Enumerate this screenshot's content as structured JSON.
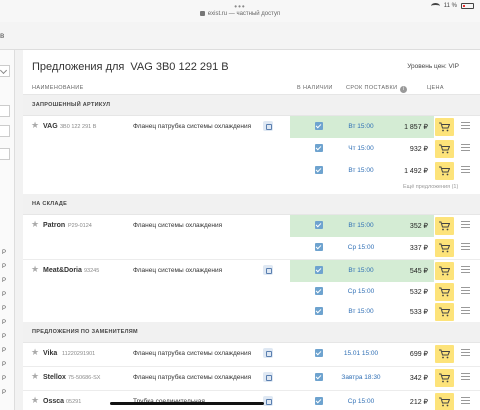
{
  "statusbar": {
    "dots": "•••",
    "url": "exist.ru — частный доступ",
    "battery": "11 %"
  },
  "navbar": {
    "letter": "в"
  },
  "leftpanel": {
    "r_labels": [
      "Р",
      "Р",
      "Р",
      "Р",
      "Р",
      "Р",
      "Р",
      "Р",
      "Р",
      "Р",
      "Р",
      "Р"
    ]
  },
  "header": {
    "title": "Предложения для",
    "code": "VAG 3B0 122 291 B",
    "price_level": "Уровень цен: VIP"
  },
  "columns": {
    "name": "НАИМЕНОВАНИЕ",
    "in_stock": "В НАЛИЧИИ",
    "delivery": "СРОК ПОСТАВКИ",
    "price": "ЦЕНА"
  },
  "sections": {
    "requested": "ЗАПРОШЕННЫЙ АРТИКУЛ",
    "warehouse": "НА СКЛАДЕ",
    "substitutes": "ПРЕДЛОЖЕНИЯ ПО ЗАМЕНИТЕЛЯМ"
  },
  "more_offers": "Ещё предложения (1)",
  "rows": {
    "r1": {
      "brand": "VAG",
      "article": "3B0 122 291 B",
      "desc": "Фланец патрубка системы охлаждения",
      "term": "Вт 15:00",
      "price": "1 857 ₽"
    },
    "r2": {
      "term": "Чт 15:00",
      "price": "932 ₽"
    },
    "r3": {
      "term": "Вт 15:00",
      "price": "1 492 ₽"
    },
    "r4": {
      "brand": "Patron",
      "article": "P29-0124",
      "desc": "Фланец системы охлаждения",
      "term": "Вт 15:00",
      "price": "352 ₽"
    },
    "r5": {
      "term": "Ср 15:00",
      "price": "337 ₽"
    },
    "r6": {
      "brand": "Meat&Doria",
      "article": "93245",
      "desc": "Фланец системы охлаждения",
      "term": "Вт 15:00",
      "price": "545 ₽"
    },
    "r7": {
      "term": "Ср 15:00",
      "price": "532 ₽"
    },
    "r8": {
      "term": "Вт 15:00",
      "price": "533 ₽"
    },
    "r9": {
      "brand": "Vika",
      "article": "11220291901",
      "desc": "Фланец патрубка системы охлаждения",
      "term": "15.01 15:00",
      "price": "699 ₽"
    },
    "r10": {
      "brand": "Stellox",
      "article": "75-50686-SX",
      "desc": "Фланец патрубка системы охлаждения",
      "term": "Завтра 18:30",
      "price": "342 ₽"
    },
    "r11": {
      "brand": "Ossca",
      "article": "05291",
      "desc": "Трубка соединительная",
      "term": "Ср 15:00",
      "price": "212 ₽"
    }
  },
  "colors": {
    "green_highlight": "#d4ecd4",
    "cart_yellow": "#fde37a",
    "link_blue": "#2f6fb5"
  },
  "icons": {
    "cart": "cart-icon",
    "menu": "menu-icon",
    "favorite": "star-icon"
  }
}
